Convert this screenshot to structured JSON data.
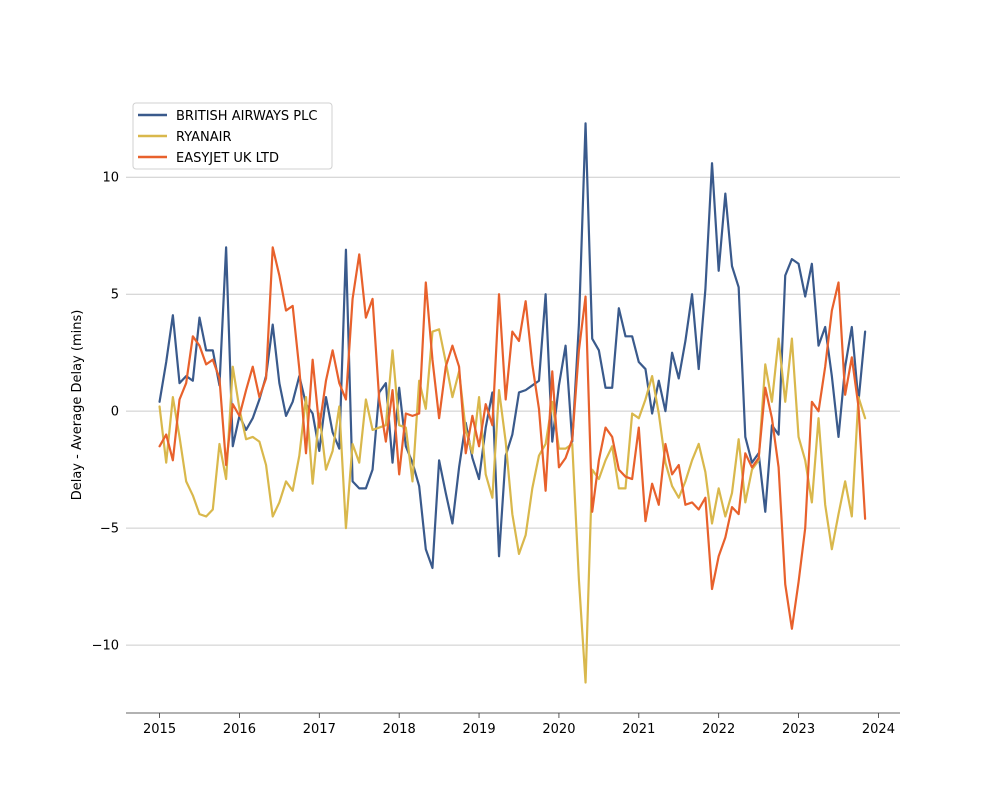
{
  "chart_data": {
    "type": "line",
    "title": "",
    "xlabel": "",
    "ylabel": "Delay - Average Delay (mins)",
    "xlim": [
      2014.58,
      2024.27
    ],
    "ylim": [
      -12.9,
      13.3
    ],
    "x_ticks": [
      2015,
      2016,
      2017,
      2018,
      2019,
      2020,
      2021,
      2022,
      2023,
      2024
    ],
    "x_tick_labels": [
      "2015",
      "2016",
      "2017",
      "2018",
      "2019",
      "2020",
      "2021",
      "2022",
      "2023",
      "2024"
    ],
    "y_ticks": [
      -10,
      -5,
      0,
      5,
      10
    ],
    "y_tick_labels": [
      "−10",
      "−5",
      "0",
      "5",
      "10"
    ],
    "grid": "horizontal",
    "legend_position": "top-left",
    "x_start": 2015.0,
    "x_step": 0.0833333,
    "series": [
      {
        "name": "BRITISH AIRWAYS PLC",
        "color": "#3a5a8c",
        "values": [
          0.4,
          2.1,
          4.1,
          1.2,
          1.5,
          1.3,
          4.0,
          2.6,
          2.6,
          1.1,
          7.0,
          -1.5,
          -0.2,
          -0.8,
          -0.3,
          0.5,
          1.5,
          3.7,
          1.2,
          -0.2,
          0.4,
          1.5,
          0.3,
          -0.1,
          -1.7,
          0.6,
          -0.9,
          -1.6,
          6.9,
          -3.0,
          -3.3,
          -3.3,
          -2.5,
          0.8,
          1.2,
          -2.2,
          1.0,
          -1.5,
          -2.2,
          -3.2,
          -5.9,
          -6.7,
          -2.1,
          -3.5,
          -4.8,
          -2.4,
          -0.5,
          -2.0,
          -2.9,
          -0.7,
          0.8,
          -6.2,
          -1.9,
          -1.0,
          0.8,
          0.9,
          1.1,
          1.3,
          5.0,
          -1.3,
          1.1,
          2.8,
          -1.3,
          3.7,
          12.3,
          3.1,
          2.6,
          1.0,
          1.0,
          4.4,
          3.2,
          3.2,
          2.1,
          1.8,
          -0.1,
          1.3,
          0.0,
          2.5,
          1.4,
          3.0,
          5.0,
          1.8,
          5.2,
          10.6,
          6.0,
          9.3,
          6.2,
          5.3,
          -1.1,
          -2.2,
          -1.8,
          -4.3,
          -0.6,
          -1.0,
          5.8,
          6.5,
          6.3,
          4.9,
          6.3,
          2.8,
          3.6,
          1.5,
          -1.1,
          1.9,
          3.6,
          0.4,
          3.4
        ]
      },
      {
        "name": "RYANAIR",
        "color": "#d9b84c",
        "values": [
          0.2,
          -2.2,
          0.6,
          -1.1,
          -3.0,
          -3.6,
          -4.4,
          -4.5,
          -4.2,
          -1.4,
          -2.9,
          1.9,
          0.1,
          -1.2,
          -1.1,
          -1.3,
          -2.3,
          -4.5,
          -3.9,
          -3.0,
          -3.4,
          -1.9,
          0.6,
          -3.1,
          -0.1,
          -2.5,
          -1.7,
          0.2,
          -5.0,
          -1.4,
          -2.2,
          0.5,
          -0.8,
          -0.7,
          -0.6,
          2.6,
          -0.6,
          -0.7,
          -3.0,
          1.3,
          0.1,
          3.4,
          3.5,
          2.1,
          0.6,
          1.7,
          -0.8,
          -1.8,
          0.6,
          -2.7,
          -3.7,
          0.9,
          -1.3,
          -4.4,
          -6.1,
          -5.3,
          -3.3,
          -1.9,
          -1.4,
          0.4,
          -1.6,
          -1.6,
          -1.4,
          -7.2,
          -11.6,
          -2.5,
          -2.9,
          -2.1,
          -1.5,
          -3.3,
          -3.3,
          -0.1,
          -0.3,
          0.5,
          1.5,
          -0.1,
          -2.2,
          -3.2,
          -3.7,
          -3.0,
          -2.1,
          -1.4,
          -2.6,
          -4.8,
          -3.3,
          -4.5,
          -3.5,
          -1.2,
          -3.9,
          -2.5,
          -2.1,
          2.0,
          0.4,
          3.1,
          0.4,
          3.1,
          -1.1,
          -2.1,
          -3.9,
          -0.3,
          -4.0,
          -5.9,
          -4.4,
          -3.0,
          -4.5,
          0.6,
          -0.3
        ]
      },
      {
        "name": "EASYJET UK LTD",
        "color": "#e8612c",
        "values": [
          -1.5,
          -1.0,
          -2.1,
          0.5,
          1.2,
          3.2,
          2.8,
          2.0,
          2.2,
          1.4,
          -2.3,
          0.3,
          -0.2,
          0.9,
          1.9,
          0.6,
          1.4,
          7.0,
          5.8,
          4.3,
          4.5,
          1.8,
          -1.8,
          2.2,
          -0.7,
          1.3,
          2.6,
          1.2,
          0.5,
          4.8,
          6.7,
          4.0,
          4.8,
          0.5,
          -1.3,
          0.9,
          -2.7,
          -0.1,
          -0.2,
          -0.1,
          5.5,
          2.2,
          -0.3,
          1.9,
          2.8,
          1.9,
          -1.8,
          -0.2,
          -1.5,
          0.3,
          -0.6,
          5.0,
          0.5,
          3.4,
          3.0,
          4.7,
          2.0,
          0.1,
          -3.4,
          1.7,
          -2.4,
          -2.0,
          -1.2,
          2.6,
          4.9,
          -4.3,
          -2.1,
          -0.7,
          -1.1,
          -2.5,
          -2.8,
          -2.9,
          -0.7,
          -4.7,
          -3.1,
          -4.0,
          -1.4,
          -2.7,
          -2.3,
          -4.0,
          -3.9,
          -4.2,
          -3.7,
          -7.6,
          -6.2,
          -5.4,
          -4.1,
          -4.4,
          -1.8,
          -2.4,
          -2.0,
          1.0,
          -0.3,
          -2.4,
          -7.4,
          -9.3,
          -7.3,
          -5.0,
          0.4,
          0.0,
          1.9,
          4.3,
          5.5,
          0.7,
          2.3,
          0.2,
          -4.6
        ]
      }
    ]
  }
}
